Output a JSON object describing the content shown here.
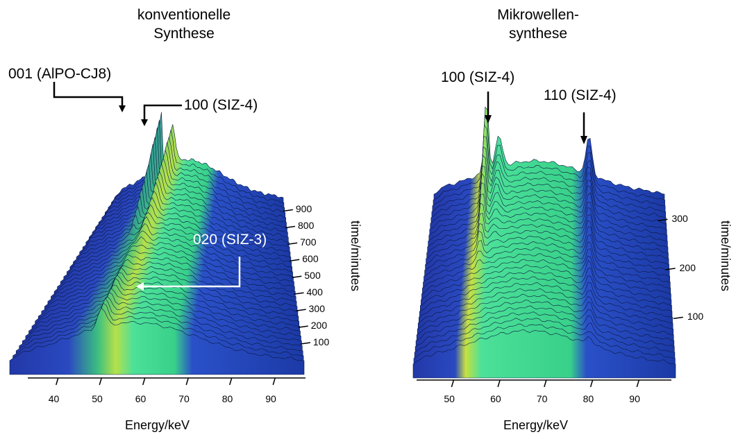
{
  "chart_data": [
    {
      "type": "area",
      "title": "konventionelle Synthese",
      "title_lines": [
        "konventionelle",
        "Synthese"
      ],
      "xlabel": "Energy/keV",
      "ylabel": "time/minutes",
      "x_ticks": [
        "40",
        "50",
        "60",
        "70",
        "80",
        "90"
      ],
      "xlim": [
        33,
        97
      ],
      "time_ticks": [
        "100",
        "200",
        "300",
        "400",
        "500",
        "600",
        "700",
        "800",
        "900"
      ],
      "time_range": [
        0,
        960
      ],
      "peaks": [
        {
          "label": "001 (AlPO-CJ8)",
          "energy": 50.5
        },
        {
          "label": "100 (SIZ-4)",
          "energy": 55
        },
        {
          "label": "020 (SIZ-3)",
          "energy": 53
        }
      ],
      "colors": {
        "surface_low": "#1f3fb5",
        "surface_mid": "#3cd488",
        "surface_high": "#d0e030",
        "peak_top": "#e03020"
      }
    },
    {
      "type": "area",
      "title": "Mikrowellen-synthese",
      "title_lines": [
        "Mikrowellen-",
        "synthese"
      ],
      "xlabel": "Energy/keV",
      "ylabel": "time/minutes",
      "x_ticks": [
        "50",
        "60",
        "70",
        "80",
        "90"
      ],
      "xlim": [
        42,
        97
      ],
      "time_ticks": [
        "100",
        "200",
        "300"
      ],
      "time_range": [
        0,
        340
      ],
      "peaks": [
        {
          "label": "100 (SIZ-4)",
          "energy": 57.5
        },
        {
          "label": "110 (SIZ-4)",
          "energy": 79
        }
      ],
      "colors": {
        "surface_low": "#1f3fb5",
        "surface_mid": "#3cd488",
        "surface_high": "#d0e030",
        "peak_top": "#e03020"
      }
    }
  ]
}
